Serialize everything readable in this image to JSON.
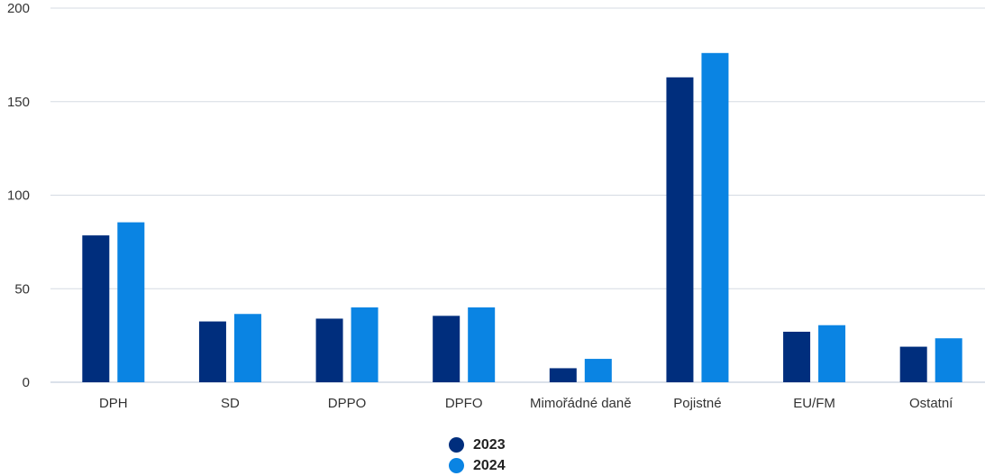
{
  "chart_data": {
    "type": "bar",
    "categories": [
      "DPH",
      "SD",
      "DPPO",
      "DPFO",
      "Mimořádné daně",
      "Pojistné",
      "EU/FM",
      "Ostatní"
    ],
    "series": [
      {
        "name": "2023",
        "color": "#002e7d",
        "values": [
          78.5,
          32.5,
          34,
          35.5,
          7.5,
          163,
          27,
          19
        ]
      },
      {
        "name": "2024",
        "color": "#0a84e3",
        "values": [
          85.5,
          36.5,
          40,
          40,
          12.5,
          176,
          30.5,
          23.5
        ]
      }
    ],
    "yticks": [
      0,
      50,
      100,
      150,
      200
    ],
    "ylim": [
      0,
      200
    ],
    "grid": true,
    "legend_position": "bottom-center",
    "title": "",
    "xlabel": "",
    "ylabel": ""
  }
}
